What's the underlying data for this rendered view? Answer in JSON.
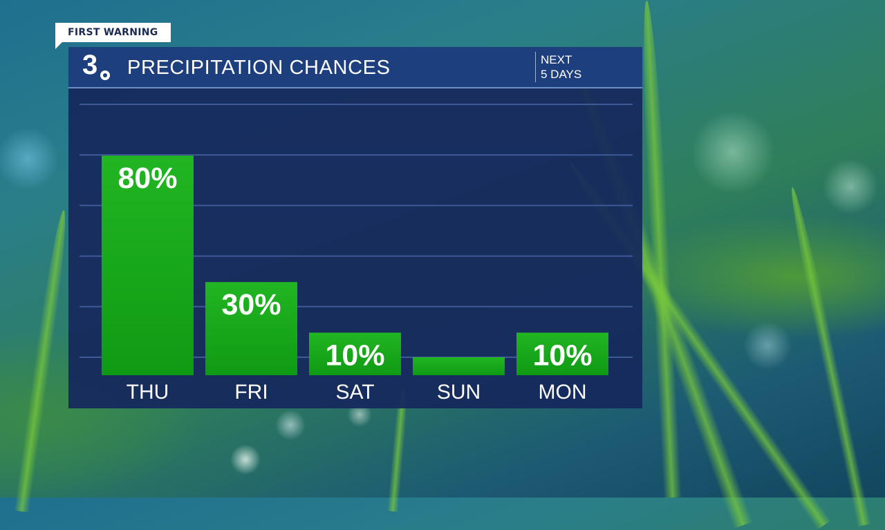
{
  "tag": "FIRST WARNING",
  "header": {
    "logo_number": "3",
    "title": "PRECIPITATION CHANCES",
    "period_line1": "NEXT",
    "period_line2": "5 DAYS"
  },
  "colors": {
    "panel": "#16285c",
    "header": "#1d3f7e",
    "bar_top": "#22b522",
    "bar_bottom": "#0f9a14",
    "grid": "#3e5a97"
  },
  "chart_data": {
    "type": "bar",
    "categories": [
      "THU",
      "FRI",
      "SAT",
      "SUN",
      "MON"
    ],
    "values": [
      80,
      30,
      10,
      0,
      10
    ],
    "value_labels": [
      "80%",
      "30%",
      "10%",
      "",
      "10%"
    ],
    "title": "PRECIPITATION CHANCES",
    "xlabel": "",
    "ylabel": "",
    "ylim": [
      0,
      100
    ],
    "grid": true
  }
}
